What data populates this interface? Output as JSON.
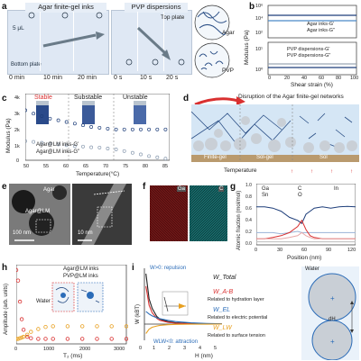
{
  "panels": {
    "a": {
      "label": "a",
      "agar_title": "Agar finite-gel inks",
      "pvp_title": "PVP dispersions",
      "volume": "5 μL",
      "bottom_plate": "Bottom plate",
      "top_plate": "Top plate",
      "agar_times": [
        "0 min",
        "10 min",
        "20 min"
      ],
      "pvp_times": [
        "0 s",
        "10 s",
        "20 s"
      ],
      "legend_agar": "Agar",
      "legend_pvp": "PVP"
    },
    "b": {
      "label": "b",
      "ylabel": "Modulus (Pa)",
      "xlabel": "Shear strain (%)",
      "top_legend": [
        "Agar inks-G'",
        "Agar inks-G\""
      ],
      "bottom_legend": [
        "PVP dispersions-G'",
        "PVP dispersions-G\""
      ],
      "yticks_top": [
        "10²",
        "10⁴",
        "10⁶"
      ],
      "yticks_bottom": [
        "10⁰",
        "10¹"
      ],
      "xticks": [
        "0",
        "20",
        "40",
        "60",
        "80",
        "100"
      ]
    },
    "c": {
      "label": "c",
      "ylabel": "Modulus (Pa)",
      "xlabel": "Temperature(°C)",
      "states": [
        "Stable",
        "Substable",
        "Unstable"
      ],
      "legend": [
        "Agar@LM inks-G'",
        "Agar@LM inks-G\""
      ],
      "yticks": [
        "0",
        "1k",
        "2k",
        "3k",
        "4k"
      ],
      "xticks": [
        "50",
        "55",
        "60",
        "65",
        "70",
        "75",
        "80",
        "85"
      ]
    },
    "d": {
      "label": "d",
      "title": "Disruption of the Agar finite-gel networks",
      "zones": [
        "Finite-gel",
        "Sol-gel",
        "Sol"
      ],
      "temperature": "Temperature"
    },
    "e": {
      "label": "e",
      "agar": "Agar",
      "agar_lm": "Agar@LM",
      "scale1": "100 nm",
      "scale2": "10 nm"
    },
    "f": {
      "label": "f",
      "ga": "Ga",
      "c": "C"
    },
    "g": {
      "label": "g",
      "ylabel": "Atomic fraction (mol/mol)",
      "xlabel": "Position (nm)",
      "legend": [
        "Ga",
        "Sn",
        "C",
        "O",
        "In"
      ],
      "yticks": [
        "0.0",
        "0.2",
        "0.4",
        "0.6",
        "0.8",
        "1.0"
      ],
      "xticks": [
        "0",
        "30",
        "60",
        "90",
        "120"
      ]
    },
    "h": {
      "label": "h",
      "ylabel": "Amplitude (arb. units)",
      "xlabel": "T₂ (ms)",
      "legend": [
        "Agar@LM inks",
        "PVP@LM inks"
      ],
      "water": "Water",
      "xticks": [
        "0",
        "1000",
        "2000",
        "3000"
      ]
    },
    "i": {
      "label": "i",
      "ylabel": "W (kBT)",
      "xlabel": "H (nm)",
      "repulsion": "W>0: repulsion",
      "attraction": "WLW<0: attraction",
      "w_total": "W_Total",
      "w_ab": "W_A-B",
      "w_el": "W_EL",
      "w_lw": "W_LW",
      "note_ab": "Related to hydration layer",
      "note_el": "Related to electric potential",
      "note_lw": "Related to surface tension",
      "water": "Water",
      "dh": "dH",
      "xticks": [
        "0",
        "1",
        "2",
        "3",
        "4",
        "5"
      ]
    }
  },
  "colors": {
    "accent_blue": "#2b6cb8",
    "accent_red": "#d93030",
    "accent_orange": "#e8a020",
    "dark": "#333333"
  },
  "chart_data": [
    {
      "type": "line",
      "panel": "b-top",
      "x": [
        0,
        20,
        40,
        60,
        80,
        100
      ],
      "series": [
        {
          "name": "Agar inks-G'",
          "values": [
            40000,
            40000,
            40000,
            40000,
            40000,
            40000
          ]
        },
        {
          "name": "Agar inks-G\"",
          "values": [
            12000,
            12000,
            12000,
            12000,
            12000,
            12000
          ]
        }
      ],
      "xlabel": "Shear strain (%)",
      "ylabel": "Modulus (Pa)"
    },
    {
      "type": "line",
      "panel": "b-bottom",
      "x": [
        0,
        20,
        40,
        60,
        80,
        100
      ],
      "series": [
        {
          "name": "PVP dispersions-G'",
          "values": [
            2,
            2,
            2,
            2,
            2,
            2
          ]
        },
        {
          "name": "PVP dispersions-G\"",
          "values": [
            3,
            3,
            3,
            3,
            3,
            3
          ]
        }
      ],
      "xlabel": "Shear strain (%)",
      "ylabel": "Modulus (Pa)"
    },
    {
      "type": "scatter",
      "panel": "c",
      "x": [
        50,
        52,
        54,
        56,
        58,
        60,
        62,
        64,
        66,
        68,
        70,
        72,
        74,
        76,
        78,
        80,
        82,
        84
      ],
      "series": [
        {
          "name": "Agar@LM inks-G'",
          "values": [
            3000,
            2800,
            2650,
            2500,
            2400,
            2300,
            2200,
            2100,
            2000,
            1950,
            1900,
            1850,
            1850,
            1850,
            1850,
            1850,
            1850,
            1850
          ]
        },
        {
          "name": "Agar@LM inks-G\"",
          "values": [
            1150,
            1100,
            1050,
            1000,
            950,
            900,
            850,
            820,
            780,
            760,
            700,
            650,
            550,
            450,
            350,
            250,
            180,
            100
          ]
        }
      ],
      "xlabel": "Temperature(°C)",
      "ylabel": "Modulus (Pa)",
      "ylim": [
        0,
        4000
      ]
    },
    {
      "type": "line",
      "panel": "g",
      "x": [
        0,
        10,
        20,
        30,
        40,
        50,
        55,
        60,
        65,
        70,
        80,
        90,
        100,
        110,
        120
      ],
      "series": [
        {
          "name": "Ga",
          "values": [
            0.62,
            0.62,
            0.6,
            0.55,
            0.45,
            0.4,
            0.35,
            0.5,
            0.55,
            0.6,
            0.62,
            0.6,
            0.62,
            0.63,
            0.62
          ]
        },
        {
          "name": "Sn",
          "values": [
            0.2,
            0.2,
            0.2,
            0.18,
            0.2,
            0.22,
            0.2,
            0.2,
            0.2,
            0.2,
            0.2,
            0.2,
            0.2,
            0.2,
            0.2
          ]
        },
        {
          "name": "C",
          "values": [
            0.1,
            0.1,
            0.12,
            0.15,
            0.2,
            0.3,
            0.4,
            0.25,
            0.15,
            0.12,
            0.1,
            0.1,
            0.1,
            0.1,
            0.1
          ]
        },
        {
          "name": "O",
          "values": [
            0.1,
            0.1,
            0.1,
            0.1,
            0.12,
            0.15,
            0.2,
            0.15,
            0.12,
            0.1,
            0.1,
            0.1,
            0.1,
            0.1,
            0.1
          ]
        },
        {
          "name": "In",
          "values": [
            0.05,
            0.05,
            0.05,
            0.05,
            0.05,
            0.05,
            0.05,
            0.05,
            0.05,
            0.05,
            0.05,
            0.05,
            0.05,
            0.05,
            0.05
          ]
        }
      ],
      "xlabel": "Position (nm)",
      "ylabel": "Atomic fraction (mol/mol)",
      "ylim": [
        0,
        1.0
      ]
    },
    {
      "type": "scatter",
      "panel": "h",
      "x": [
        0,
        50,
        100,
        150,
        200,
        300,
        400,
        600,
        800,
        1000,
        1400,
        1800,
        2200,
        2600,
        3000
      ],
      "series": [
        {
          "name": "Agar@LM inks",
          "values": [
            1.0,
            0.85,
            0.55,
            0.3,
            0.15,
            0.05,
            0.03,
            0.02,
            0.02,
            0.02,
            0.02,
            0.02,
            0.02,
            0.02,
            0.02
          ]
        },
        {
          "name": "PVP@LM inks",
          "values": [
            0.02,
            0.02,
            0.03,
            0.04,
            0.05,
            0.08,
            0.12,
            0.16,
            0.19,
            0.2,
            0.2,
            0.2,
            0.2,
            0.2,
            0.2
          ]
        }
      ],
      "xlabel": "T₂ (ms)",
      "ylabel": "Amplitude (arb. units)"
    },
    {
      "type": "line",
      "panel": "i",
      "x": [
        0.1,
        0.3,
        0.5,
        0.8,
        1.0,
        1.5,
        2.0,
        3.0,
        4.0,
        5.0
      ],
      "series": [
        {
          "name": "W_Total",
          "values": [
            8,
            4,
            2.5,
            1.2,
            0.8,
            0.4,
            0.2,
            0.1,
            0.05,
            0.02
          ]
        },
        {
          "name": "W_A-B",
          "values": [
            6,
            3,
            1.8,
            0.9,
            0.6,
            0.3,
            0.15,
            0.05,
            0.02,
            0.01
          ]
        },
        {
          "name": "W_EL",
          "values": [
            2,
            1.6,
            1.3,
            1.0,
            0.85,
            0.6,
            0.4,
            0.2,
            0.1,
            0.05
          ]
        },
        {
          "name": "W_LW",
          "values": [
            -1.5,
            -0.8,
            -0.5,
            -0.3,
            -0.2,
            -0.1,
            -0.05,
            -0.02,
            -0.01,
            0
          ]
        }
      ],
      "xlabel": "H (nm)",
      "ylabel": "W (kBT)"
    }
  ]
}
